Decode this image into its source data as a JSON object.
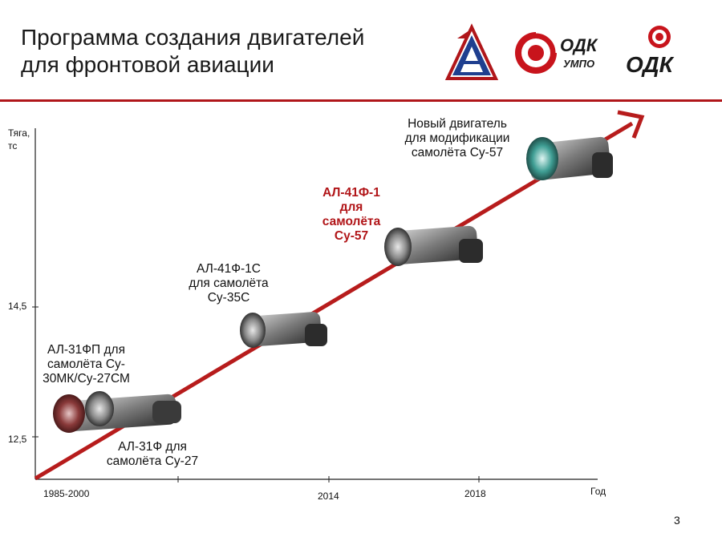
{
  "header": {
    "title": "Программа создания двигателей\nдля фронтовой авиации",
    "logo_odk_umpo_text": "ОДК",
    "logo_umpo_sub": "УМПО",
    "logo_odk_text": "ОДК"
  },
  "colors": {
    "brand_red": "#b0161a",
    "arrow_red": "#b71c1c",
    "text": "#111111"
  },
  "chart": {
    "y_axis_label": "Тяга,\nтс",
    "x_axis_label": "Год",
    "y_ticks": [
      "14,5",
      "12,5"
    ],
    "x_ticks": [
      "1985-2000",
      "2014",
      "2018"
    ],
    "engines": [
      {
        "label": "АЛ-31Ф для\nсамолёта  Су-27",
        "highlight": false
      },
      {
        "label": "АЛ-31ФП для\nсамолёта Су-\n30МК/Су-27СМ",
        "highlight": false
      },
      {
        "label": "АЛ-41Ф-1С\nдля самолёта\nСу-35С",
        "highlight": false
      },
      {
        "label": "АЛ-41Ф-1\nдля\nсамолёта\nСу-57",
        "highlight": true
      },
      {
        "label": "Новый двигатель\nдля модификации\nсамолёта Су-57",
        "highlight": false
      }
    ]
  },
  "footer": {
    "page_number": "3"
  }
}
